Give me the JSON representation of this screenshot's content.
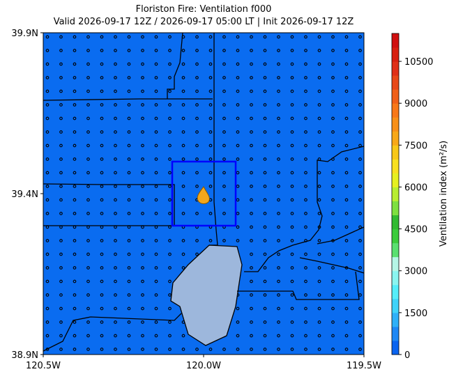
{
  "title": [
    "Floriston Fire: Ventilation f000",
    "Valid 2026-09-17 12Z / 2026-09-17 05:00 LT | Init 2026-09-17 12Z"
  ],
  "map": {
    "xlim": [
      -120.5,
      -119.5
    ],
    "ylim": [
      38.9,
      39.9
    ],
    "xticks": [
      {
        "value": -120.5,
        "label": "120.5W"
      },
      {
        "value": -120.0,
        "label": "120.0W"
      },
      {
        "value": -119.5,
        "label": "119.5W"
      }
    ],
    "yticks": [
      {
        "value": 38.9,
        "label": "38.9N"
      },
      {
        "value": 39.4,
        "label": "39.4N"
      },
      {
        "value": 39.9,
        "label": "39.9N"
      }
    ]
  },
  "colorbar": {
    "label": "Ventilation index (m²/s)",
    "lim": [
      0,
      11500
    ],
    "ticks": [
      0,
      1500,
      3000,
      4500,
      6000,
      7500,
      9000,
      10500
    ],
    "colors": [
      "#0a64f0",
      "#1e88f5",
      "#2fb0f8",
      "#3fd3fa",
      "#55eefa",
      "#8af5f0",
      "#b5f6e6",
      "#5ae070",
      "#3ccc3c",
      "#32bb32",
      "#7ee040",
      "#b8ee30",
      "#e6f020",
      "#f8e020",
      "#f8c818",
      "#f8a818",
      "#f89018",
      "#f87818",
      "#f06018",
      "#e84818",
      "#e03018",
      "#d82010",
      "#d01010"
    ]
  }
}
